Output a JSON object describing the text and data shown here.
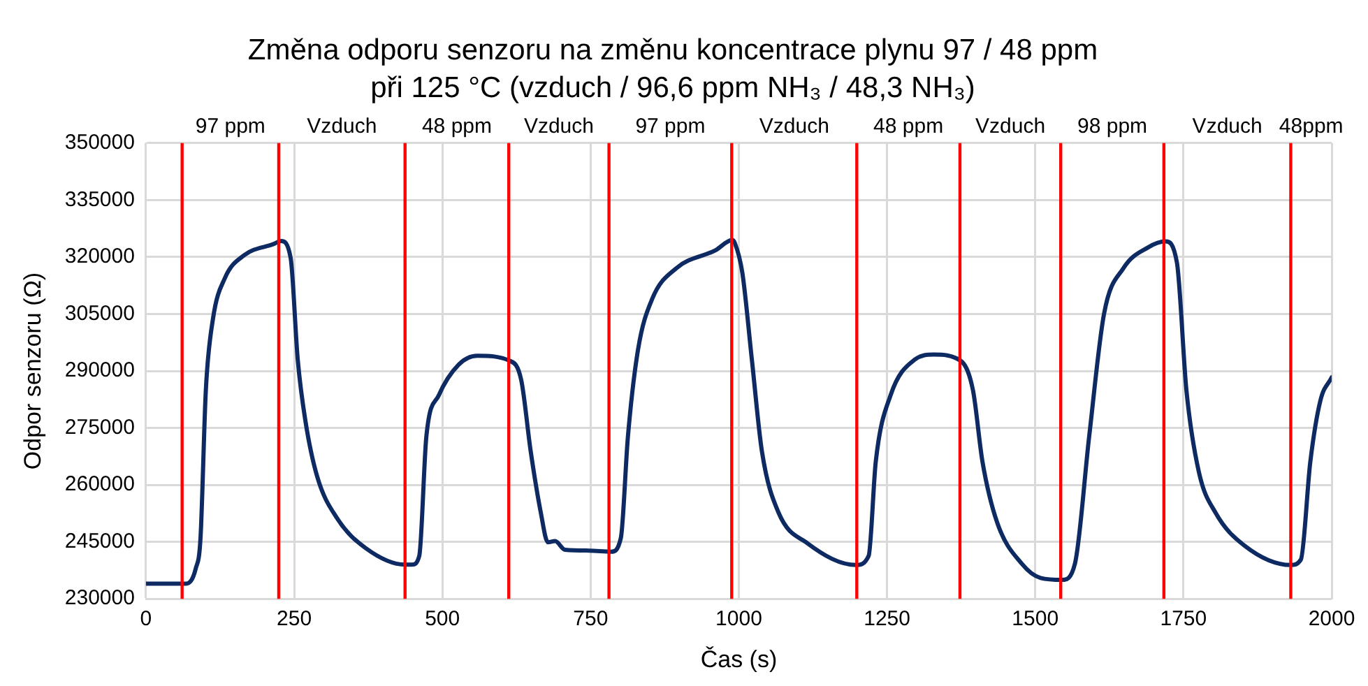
{
  "chart_data": {
    "type": "line",
    "title": "Změna odporu senzoru na změnu koncentrace plynu 97 / 48 ppm",
    "subtitle": "při 125 °C (vzduch / 96,6 ppm NH₃ / 48,3 NH₃)",
    "xlabel": "Čas (s)",
    "ylabel": "Odpor senzoru (Ω)",
    "xlim": [
      0,
      2000
    ],
    "xticks": [
      0,
      250,
      500,
      750,
      1000,
      1250,
      1500,
      1750,
      2000
    ],
    "ylim": [
      230000,
      350000
    ],
    "yticks": [
      230000,
      245000,
      260000,
      275000,
      290000,
      305000,
      320000,
      335000,
      350000
    ],
    "grid": true,
    "legend": false,
    "marker": "none",
    "line_style": "solid",
    "series": [
      {
        "color": "#0d2a63",
        "x": [
          0,
          68,
          84,
          92,
          101,
          113,
          133,
          166,
          215,
          228,
          244,
          256,
          269,
          289,
          322,
          371,
          437,
          449,
          461,
          473,
          494,
          527,
          559,
          613,
          633,
          649,
          666,
          678,
          690,
          707,
          748,
          785,
          801,
          813,
          830,
          854,
          895,
          961,
          989,
          993,
          1006,
          1022,
          1039,
          1067,
          1116,
          1198,
          1219,
          1231,
          1256,
          1297,
          1329,
          1374,
          1395,
          1411,
          1436,
          1477,
          1509,
          1546,
          1567,
          1591,
          1616,
          1649,
          1690,
          1720,
          1739,
          1755,
          1776,
          1804,
          1853,
          1931,
          1948,
          1964,
          1981,
          2000
        ],
        "values": [
          234000,
          234000,
          238000,
          246000,
          284900,
          303700,
          314400,
          320500,
          323400,
          324200,
          319800,
          293000,
          276800,
          262100,
          251300,
          243300,
          239000,
          239000,
          241300,
          272800,
          283600,
          291600,
          294000,
          292700,
          287600,
          268800,
          252700,
          244900,
          245200,
          242900,
          242700,
          242400,
          246000,
          272800,
          295600,
          309000,
          317100,
          321800,
          324500,
          323800,
          315800,
          293000,
          268800,
          252700,
          244600,
          238900,
          241300,
          266100,
          283600,
          293000,
          294300,
          292700,
          284900,
          266100,
          250000,
          239300,
          235500,
          235000,
          239300,
          272800,
          305000,
          317100,
          322500,
          324100,
          318500,
          284900,
          263400,
          252700,
          244000,
          238900,
          240300,
          266100,
          282200,
          288300
        ]
      }
    ],
    "ref_lines": [
      {
        "axis": "x",
        "value": 61,
        "color": "#ff0000"
      },
      {
        "axis": "x",
        "value": 224,
        "color": "#ff0000"
      },
      {
        "axis": "x",
        "value": 437,
        "color": "#ff0000"
      },
      {
        "axis": "x",
        "value": 612,
        "color": "#ff0000"
      },
      {
        "axis": "x",
        "value": 781,
        "color": "#ff0000"
      },
      {
        "axis": "x",
        "value": 988,
        "color": "#ff0000"
      },
      {
        "axis": "x",
        "value": 1199,
        "color": "#ff0000"
      },
      {
        "axis": "x",
        "value": 1373,
        "color": "#ff0000"
      },
      {
        "axis": "x",
        "value": 1543,
        "color": "#ff0000"
      },
      {
        "axis": "x",
        "value": 1717,
        "color": "#ff0000"
      },
      {
        "axis": "x",
        "value": 1931,
        "color": "#ff0000"
      }
    ],
    "annotations": [
      "97 ppm",
      "Vzduch",
      "48 ppm",
      "Vzduch",
      "97 ppm",
      "Vzduch",
      "48 ppm",
      "Vzduch",
      "98 ppm",
      "Vzduch",
      "48ppm"
    ]
  }
}
